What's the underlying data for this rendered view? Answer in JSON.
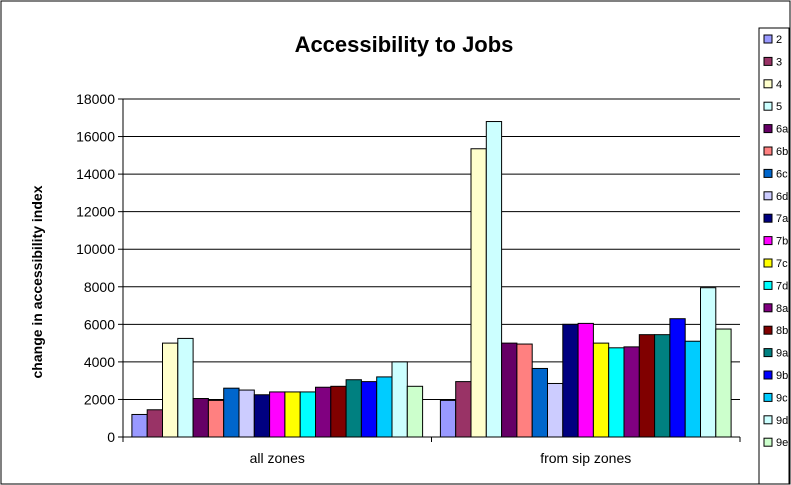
{
  "chart_data": {
    "type": "bar",
    "title": "Accessibility to Jobs",
    "xlabel": "",
    "ylabel": "change in accessibility index",
    "ylim": [
      0,
      18000
    ],
    "yticks": [
      0,
      2000,
      4000,
      6000,
      8000,
      10000,
      12000,
      14000,
      16000,
      18000
    ],
    "grid": true,
    "legend_position": "right",
    "categories": [
      "all zones",
      "from sip zones"
    ],
    "series": [
      {
        "name": "2",
        "color": "#9999FF",
        "values": [
          1200,
          1950
        ]
      },
      {
        "name": "3",
        "color": "#993366",
        "values": [
          1450,
          2950
        ]
      },
      {
        "name": "4",
        "color": "#FFFFCC",
        "values": [
          5000,
          15350
        ]
      },
      {
        "name": "5",
        "color": "#CCFFFF",
        "values": [
          5250,
          16800
        ]
      },
      {
        "name": "6a",
        "color": "#660066",
        "values": [
          2050,
          5000
        ]
      },
      {
        "name": "6b",
        "color": "#FF8080",
        "values": [
          1950,
          4950
        ]
      },
      {
        "name": "6c",
        "color": "#0066CC",
        "values": [
          2600,
          3650
        ]
      },
      {
        "name": "6d",
        "color": "#CCCCFF",
        "values": [
          2500,
          2850
        ]
      },
      {
        "name": "7a",
        "color": "#000080",
        "values": [
          2250,
          6000
        ]
      },
      {
        "name": "7b",
        "color": "#FF00FF",
        "values": [
          2400,
          6050
        ]
      },
      {
        "name": "7c",
        "color": "#FFFF00",
        "values": [
          2400,
          5000
        ]
      },
      {
        "name": "7d",
        "color": "#00FFFF",
        "values": [
          2400,
          4750
        ]
      },
      {
        "name": "8a",
        "color": "#800080",
        "values": [
          2650,
          4800
        ]
      },
      {
        "name": "8b",
        "color": "#800000",
        "values": [
          2700,
          5450
        ]
      },
      {
        "name": "9a",
        "color": "#008080",
        "values": [
          3050,
          5450
        ]
      },
      {
        "name": "9b",
        "color": "#0000FF",
        "values": [
          2950,
          6300
        ]
      },
      {
        "name": "9c",
        "color": "#00CCFF",
        "values": [
          3200,
          5100
        ]
      },
      {
        "name": "9d",
        "color": "#CCFFFF",
        "values": [
          4000,
          7950
        ]
      },
      {
        "name": "9e",
        "color": "#CCFFCC",
        "values": [
          2700,
          5750
        ]
      }
    ]
  }
}
